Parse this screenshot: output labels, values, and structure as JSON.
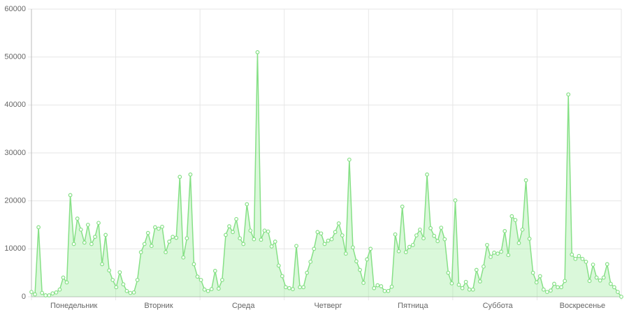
{
  "chart_data": {
    "type": "area",
    "categories": [
      null,
      null,
      null,
      null,
      null,
      null,
      null,
      null,
      null,
      null,
      null,
      null,
      "Понедельник",
      null,
      null,
      null,
      null,
      null,
      null,
      null,
      null,
      null,
      null,
      null,
      null,
      null,
      null,
      null,
      null,
      null,
      null,
      null,
      null,
      null,
      null,
      null,
      "Вторник",
      null,
      null,
      null,
      null,
      null,
      null,
      null,
      null,
      null,
      null,
      null,
      null,
      null,
      null,
      null,
      null,
      null,
      null,
      null,
      null,
      null,
      null,
      null,
      "Среда",
      null,
      null,
      null,
      null,
      null,
      null,
      null,
      null,
      null,
      null,
      null,
      null,
      null,
      null,
      null,
      null,
      null,
      null,
      null,
      null,
      null,
      null,
      null,
      "Четверг",
      null,
      null,
      null,
      null,
      null,
      null,
      null,
      null,
      null,
      null,
      null,
      null,
      null,
      null,
      null,
      null,
      null,
      null,
      null,
      null,
      null,
      null,
      null,
      "Пятница",
      null,
      null,
      null,
      null,
      null,
      null,
      null,
      null,
      null,
      null,
      null,
      null,
      null,
      null,
      null,
      null,
      null,
      null,
      null,
      null,
      null,
      null,
      null,
      "Суббота",
      null,
      null,
      null,
      null,
      null,
      null,
      null,
      null,
      null,
      null,
      null,
      null,
      null,
      null,
      null,
      null,
      null,
      null,
      null,
      null,
      null,
      null,
      null,
      "Воскресенье",
      null,
      null,
      null,
      null,
      null,
      null,
      null,
      null,
      null,
      null,
      null
    ],
    "values": [
      1000,
      500,
      14500,
      800,
      300,
      300,
      700,
      900,
      1500,
      4000,
      3000,
      21200,
      11000,
      16300,
      14000,
      11300,
      15000,
      11000,
      12500,
      15400,
      6800,
      12900,
      5500,
      3500,
      2000,
      5100,
      2600,
      1200,
      800,
      900,
      3500,
      9300,
      11000,
      13300,
      10600,
      14500,
      14200,
      14600,
      9300,
      11500,
      12500,
      12300,
      25000,
      8200,
      12200,
      25500,
      6800,
      4200,
      3500,
      1500,
      1200,
      1600,
      5400,
      1700,
      3500,
      12900,
      14700,
      13500,
      16200,
      12200,
      11000,
      19300,
      13800,
      12000,
      51000,
      11900,
      13800,
      13600,
      10500,
      11500,
      6500,
      4300,
      2000,
      1800,
      1600,
      10600,
      2000,
      2000,
      5000,
      7300,
      10000,
      13500,
      13200,
      11000,
      11700,
      12000,
      13500,
      15300,
      12800,
      9000,
      28600,
      10300,
      7400,
      5600,
      2900,
      7800,
      10000,
      1800,
      2400,
      2200,
      1200,
      1200,
      2100,
      13000,
      9500,
      18800,
      9300,
      10400,
      10800,
      12800,
      14000,
      12200,
      25500,
      14300,
      12700,
      11600,
      14400,
      12000,
      5000,
      2800,
      20100,
      2500,
      1800,
      3100,
      1500,
      1500,
      5600,
      3200,
      6300,
      10800,
      8300,
      9200,
      9000,
      9400,
      13700,
      8700,
      16800,
      16000,
      11200,
      14000,
      24300,
      12100,
      5000,
      3000,
      4300,
      1500,
      1000,
      1300,
      2700,
      2000,
      2000,
      3300,
      42200,
      8800,
      7900,
      8500,
      7900,
      7300,
      3300,
      6700,
      4000,
      3400,
      4000,
      6800,
      2700,
      2000,
      1000,
      0
    ],
    "color": "#86e086",
    "fill": "rgba(150,235,150,0.35)",
    "ylim": [
      0,
      60000
    ],
    "yticks": [
      0,
      10000,
      20000,
      30000,
      40000,
      50000,
      60000
    ],
    "grid": true
  }
}
